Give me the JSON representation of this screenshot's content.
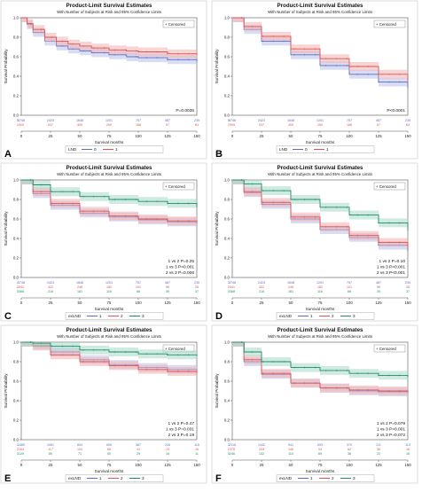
{
  "figure": {
    "legend_box_label": "+ Censored",
    "xlabel": "Survival months",
    "ylabel": "Survival Probability",
    "title": "Product-Limit Survival Estimates",
    "subtitle": "With Number of Subjects at Risk and 95% Confidence Limits"
  },
  "colors": {
    "g1": "#5b6cc4",
    "g2": "#e0524f",
    "g3": "#1f8c6a",
    "band1": "#b9c1ea",
    "band2": "#f2b3b2",
    "band3": "#a7d8c6"
  },
  "chart_data": [
    {
      "panel": "A",
      "type": "line",
      "title": "Product-Limit Survival Estimates",
      "subtitle": "With Number of Subjects at Risk and 95% Confidence Limits",
      "xlabel": "Survival months",
      "ylabel": "Survival Probability",
      "xlim": [
        0,
        150
      ],
      "ylim": [
        0,
        1
      ],
      "xticks": [
        0,
        25,
        50,
        75,
        100,
        125,
        150
      ],
      "yticks": [
        "0.0",
        "0.2",
        "0.4",
        "0.6",
        "0.8",
        "1.0"
      ],
      "legend_title": "LND",
      "legend": [
        "0",
        "1"
      ],
      "annotation": [
        "P=0.0035"
      ],
      "risk_rows": [
        {
          "label": "0",
          "values": [
            "3748",
            "2423",
            "1648",
            "1201",
            "757",
            "487",
            "239"
          ]
        },
        {
          "label": "1",
          "values": [
            "909",
            "537",
            "400",
            "290",
            "168",
            "97",
            "63"
          ]
        }
      ],
      "series": [
        {
          "name": "0",
          "color": "g1",
          "x": [
            0,
            5,
            10,
            20,
            30,
            40,
            50,
            60,
            75,
            90,
            100,
            125,
            150
          ],
          "y": [
            1.0,
            0.93,
            0.85,
            0.76,
            0.71,
            0.68,
            0.66,
            0.64,
            0.62,
            0.6,
            0.59,
            0.57,
            0.55
          ]
        },
        {
          "name": "1",
          "color": "g2",
          "x": [
            0,
            5,
            10,
            20,
            30,
            40,
            50,
            60,
            75,
            90,
            100,
            125,
            150
          ],
          "y": [
            1.0,
            0.94,
            0.88,
            0.8,
            0.76,
            0.73,
            0.71,
            0.69,
            0.67,
            0.66,
            0.65,
            0.63,
            0.62
          ]
        }
      ]
    },
    {
      "panel": "B",
      "type": "line",
      "title": "Product-Limit Survival Estimates",
      "subtitle": "With Number of Subjects at Risk and 95% Confidence Limits",
      "xlabel": "Survival months",
      "ylabel": "Survival Probability",
      "xlim": [
        0,
        150
      ],
      "ylim": [
        0,
        1
      ],
      "xticks": [
        0,
        25,
        50,
        75,
        100,
        125,
        150
      ],
      "yticks": [
        "0.0",
        "0.2",
        "0.4",
        "0.6",
        "0.8",
        "1.0"
      ],
      "legend_title": "LND",
      "legend": [
        "0",
        "1"
      ],
      "annotation": [
        "P<0.0001"
      ],
      "risk_rows": [
        {
          "label": "0",
          "values": [
            "3748",
            "2423",
            "1648",
            "1201",
            "757",
            "487",
            "239"
          ]
        },
        {
          "label": "1",
          "values": [
            "909",
            "537",
            "400",
            "290",
            "168",
            "97",
            "63"
          ]
        }
      ],
      "series": [
        {
          "name": "0",
          "color": "g1",
          "x": [
            0,
            10,
            25,
            50,
            75,
            100,
            125,
            150
          ],
          "y": [
            1.0,
            0.88,
            0.76,
            0.62,
            0.51,
            0.42,
            0.34,
            0.28
          ]
        },
        {
          "name": "1",
          "color": "g2",
          "x": [
            0,
            10,
            25,
            50,
            75,
            100,
            125,
            150
          ],
          "y": [
            1.0,
            0.91,
            0.81,
            0.68,
            0.58,
            0.5,
            0.42,
            0.35
          ]
        }
      ]
    },
    {
      "panel": "C",
      "type": "line",
      "title": "Product-Limit Survival Estimates",
      "subtitle": "With Number of Subjects at Risk and 95% Confidence Limits",
      "xlabel": "Survival months",
      "ylabel": "Survival Probability",
      "xlim": [
        0,
        150
      ],
      "ylim": [
        0,
        1
      ],
      "xticks": [
        0,
        25,
        50,
        75,
        100,
        125,
        150
      ],
      "yticks": [
        "0.0",
        "0.2",
        "0.4",
        "0.6",
        "0.8",
        "1.0"
      ],
      "legend_title": "exLND",
      "legend": [
        "1",
        "2",
        "3"
      ],
      "annotation": [
        "1 vs 2 P=0.25",
        "1 vs 3 P<0.001",
        "2 vs 3 P=0.006"
      ],
      "risk_rows": [
        {
          "label": "1",
          "values": [
            "3748",
            "2423",
            "1648",
            "1201",
            "757",
            "487",
            "239"
          ]
        },
        {
          "label": "2",
          "values": [
            "541",
            "322",
            "246",
            "182",
            "101",
            "56",
            "26"
          ]
        },
        {
          "label": "3",
          "values": [
            "368",
            "216",
            "161",
            "116",
            "66",
            "39",
            "37"
          ]
        }
      ],
      "series": [
        {
          "name": "1",
          "color": "g1",
          "x": [
            0,
            10,
            25,
            50,
            75,
            100,
            125,
            150
          ],
          "y": [
            1.0,
            0.86,
            0.74,
            0.66,
            0.62,
            0.59,
            0.57,
            0.55
          ]
        },
        {
          "name": "2",
          "color": "g2",
          "x": [
            0,
            10,
            25,
            50,
            75,
            100,
            125,
            150
          ],
          "y": [
            1.0,
            0.88,
            0.76,
            0.68,
            0.63,
            0.6,
            0.58,
            0.57
          ]
        },
        {
          "name": "3",
          "color": "g3",
          "x": [
            0,
            10,
            25,
            50,
            75,
            100,
            125,
            150
          ],
          "y": [
            1.0,
            0.95,
            0.88,
            0.83,
            0.8,
            0.78,
            0.76,
            0.72
          ]
        }
      ]
    },
    {
      "panel": "D",
      "type": "line",
      "title": "Product-Limit Survival Estimates",
      "subtitle": "With Number of Subjects at Risk and 95% Confidence Limits",
      "xlabel": "Survival months",
      "ylabel": "Survival Probability",
      "xlim": [
        0,
        150
      ],
      "ylim": [
        0,
        1
      ],
      "xticks": [
        0,
        25,
        50,
        75,
        100,
        125,
        150
      ],
      "yticks": [
        "0.0",
        "0.2",
        "0.4",
        "0.6",
        "0.8",
        "1.0"
      ],
      "legend_title": "exLND",
      "legend": [
        "1",
        "2",
        "3"
      ],
      "annotation": [
        "1 vs 2 P=0.10",
        "1 vs 3 P<0.001",
        "2 vs 3 P<0.001"
      ],
      "risk_rows": [
        {
          "label": "1",
          "values": [
            "3748",
            "2423",
            "1648",
            "1201",
            "757",
            "487",
            "239"
          ]
        },
        {
          "label": "2",
          "values": [
            "541",
            "322",
            "246",
            "182",
            "101",
            "56",
            "26"
          ]
        },
        {
          "label": "3",
          "values": [
            "368",
            "216",
            "161",
            "116",
            "66",
            "39",
            "37"
          ]
        }
      ],
      "series": [
        {
          "name": "1",
          "color": "g1",
          "x": [
            0,
            10,
            25,
            50,
            75,
            100,
            125,
            150
          ],
          "y": [
            1.0,
            0.87,
            0.75,
            0.6,
            0.49,
            0.41,
            0.33,
            0.27
          ]
        },
        {
          "name": "2",
          "color": "g2",
          "x": [
            0,
            10,
            25,
            50,
            75,
            100,
            125,
            150
          ],
          "y": [
            1.0,
            0.88,
            0.77,
            0.62,
            0.52,
            0.43,
            0.36,
            0.3
          ]
        },
        {
          "name": "3",
          "color": "g3",
          "x": [
            0,
            10,
            25,
            50,
            75,
            100,
            125,
            150
          ],
          "y": [
            1.0,
            0.96,
            0.89,
            0.8,
            0.72,
            0.64,
            0.56,
            0.48
          ]
        }
      ]
    },
    {
      "panel": "E",
      "type": "line",
      "title": "Product-Limit Survival Estimates",
      "subtitle": "With Number of Subjects at Risk and 95% Confidence Limits",
      "xlabel": "Survival months",
      "ylabel": "Survival Probability",
      "xlim": [
        0,
        150
      ],
      "ylim": [
        0,
        1
      ],
      "xticks": [
        0,
        25,
        50,
        75,
        100,
        125,
        150
      ],
      "yticks": [
        "0.0",
        "0.2",
        "0.4",
        "0.6",
        "0.8",
        "1.0"
      ],
      "legend_title": "exLND",
      "legend": [
        "1",
        "2",
        "3"
      ],
      "annotation": [
        "1 vs 2 P=0.47",
        "1 vs 3 P=0.031",
        "2 vs 3 P=0.19"
      ],
      "risk_rows": [
        {
          "label": "1",
          "values": [
            "1480",
            "1061",
            "804",
            "606",
            "387",
            "226",
            "116"
          ]
        },
        {
          "label": "2",
          "values": [
            "163",
            "117",
            "104",
            "68",
            "41",
            "24",
            "16"
          ]
        },
        {
          "label": "3",
          "values": [
            "129",
            "89",
            "71",
            "50",
            "29",
            "16",
            "11"
          ]
        }
      ],
      "series": [
        {
          "name": "1",
          "color": "g1",
          "x": [
            0,
            10,
            25,
            50,
            75,
            100,
            125,
            150
          ],
          "y": [
            1.0,
            0.97,
            0.9,
            0.82,
            0.77,
            0.74,
            0.72,
            0.7
          ]
        },
        {
          "name": "2",
          "color": "g2",
          "x": [
            0,
            10,
            25,
            50,
            75,
            100,
            125,
            150
          ],
          "y": [
            1.0,
            0.96,
            0.87,
            0.8,
            0.76,
            0.72,
            0.7,
            0.68
          ]
        },
        {
          "name": "3",
          "color": "g3",
          "x": [
            0,
            10,
            25,
            50,
            75,
            100,
            125,
            150
          ],
          "y": [
            1.0,
            0.99,
            0.96,
            0.92,
            0.9,
            0.88,
            0.87,
            0.86
          ]
        }
      ]
    },
    {
      "panel": "F",
      "type": "line",
      "title": "Product-Limit Survival Estimates",
      "subtitle": "With Number of Subjects at Risk and 95% Confidence Limits",
      "xlabel": "Survival months",
      "ylabel": "Survival Probability",
      "xlim": [
        0,
        150
      ],
      "ylim": [
        0,
        1
      ],
      "xticks": [
        0,
        25,
        50,
        75,
        100,
        125,
        150
      ],
      "yticks": [
        "0.0",
        "0.2",
        "0.4",
        "0.6",
        "0.8",
        "1.0"
      ],
      "legend_title": "exLND",
      "legend": [
        "1",
        "2",
        "3"
      ],
      "annotation": [
        "1 vs 2 P=0.079",
        "1 vs 3 P<0.001",
        "2 vs 3 P=0.072"
      ],
      "risk_rows": [
        {
          "label": "1",
          "values": [
            "2318",
            "1442",
            "941",
            "593",
            "370",
            "211",
            "113"
          ]
        },
        {
          "label": "2",
          "values": [
            "378",
            "205",
            "146",
            "94",
            "62",
            "36",
            "16"
          ]
        },
        {
          "label": "3",
          "values": [
            "246",
            "132",
            "110",
            "69",
            "36",
            "22",
            "16"
          ]
        }
      ],
      "series": [
        {
          "name": "1",
          "color": "g1",
          "x": [
            0,
            10,
            25,
            50,
            75,
            100,
            125,
            150
          ],
          "y": [
            1.0,
            0.8,
            0.67,
            0.58,
            0.53,
            0.5,
            0.49,
            0.48
          ]
        },
        {
          "name": "2",
          "color": "g2",
          "x": [
            0,
            10,
            25,
            50,
            75,
            100,
            125,
            150
          ],
          "y": [
            1.0,
            0.82,
            0.68,
            0.58,
            0.53,
            0.51,
            0.5,
            0.49
          ]
        },
        {
          "name": "3",
          "color": "g3",
          "x": [
            0,
            10,
            25,
            50,
            75,
            100,
            125,
            150
          ],
          "y": [
            1.0,
            0.9,
            0.8,
            0.74,
            0.71,
            0.68,
            0.66,
            0.64
          ]
        }
      ]
    }
  ]
}
